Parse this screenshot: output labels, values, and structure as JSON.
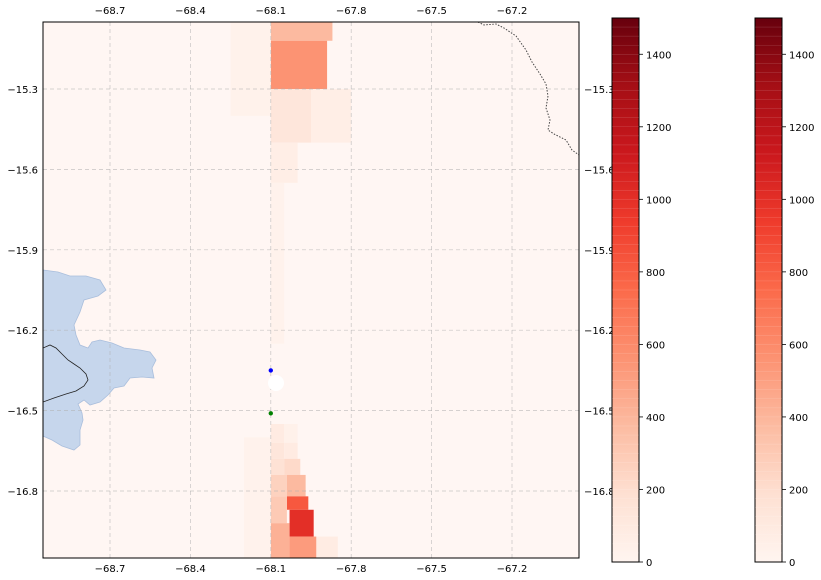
{
  "map": {
    "lon_range": [
      -68.95,
      -66.95
    ],
    "lat_range": [
      -17.05,
      -15.05
    ],
    "x_ticks": [
      -68.7,
      -68.4,
      -68.1,
      -67.8,
      -67.5,
      -67.2
    ],
    "x_tick_labels": [
      "−68.7",
      "−68.4",
      "−68.1",
      "−67.8",
      "−67.5",
      "−67.2"
    ],
    "y_ticks": [
      -15.3,
      -15.6,
      -15.9,
      -16.2,
      -16.5,
      -16.8
    ],
    "y_tick_labels": [
      "−15.3",
      "−15.6",
      "−15.9",
      "−16.2",
      "−16.5",
      "−16.8"
    ],
    "gridlines": true,
    "points": [
      {
        "name": "blue-station",
        "lon": -68.1,
        "lat": -16.35,
        "color": "#0000ff"
      },
      {
        "name": "green-station",
        "lon": -68.1,
        "lat": -16.51,
        "color": "#008000"
      }
    ],
    "lake_color": "#c6d6ec",
    "background_color": "#fff6f3",
    "colormap": "Reds"
  },
  "colorbars": [
    {
      "name": "colorbar-left",
      "range": [
        0,
        1500
      ],
      "tick_labels": [
        "0",
        "200",
        "400",
        "600",
        "800",
        "1000",
        "1200",
        "1400"
      ]
    },
    {
      "name": "colorbar-right",
      "range": [
        0,
        1500
      ],
      "tick_labels": [
        "0",
        "200",
        "400",
        "600",
        "800",
        "1000",
        "1200",
        "1400"
      ]
    }
  ],
  "cells": [
    {
      "lon0": -68.1,
      "lon1": -67.87,
      "lat0": -15.05,
      "lat1": -15.12,
      "value": 380
    },
    {
      "lon0": -68.1,
      "lon1": -67.89,
      "lat0": -15.12,
      "lat1": -15.3,
      "value": 560
    },
    {
      "lon0": -68.1,
      "lon1": -67.95,
      "lat0": -15.3,
      "lat1": -15.5,
      "value": 130
    },
    {
      "lon0": -67.95,
      "lon1": -67.8,
      "lat0": -15.3,
      "lat1": -15.5,
      "value": 60
    },
    {
      "lon0": -68.1,
      "lon1": -68.0,
      "lat0": -15.5,
      "lat1": -15.65,
      "value": 60
    },
    {
      "lon0": -68.1,
      "lon1": -68.05,
      "lat0": -15.65,
      "lat1": -16.25,
      "value": 25
    },
    {
      "lon0": -68.1,
      "lon1": -68.05,
      "lat0": -16.55,
      "lat1": -16.62,
      "value": 90
    },
    {
      "lon0": -68.05,
      "lon1": -68.0,
      "lat0": -16.55,
      "lat1": -16.62,
      "value": 40
    },
    {
      "lon0": -68.1,
      "lon1": -68.05,
      "lat0": -16.62,
      "lat1": -16.68,
      "value": 130
    },
    {
      "lon0": -68.05,
      "lon1": -68.0,
      "lat0": -16.62,
      "lat1": -16.68,
      "value": 90
    },
    {
      "lon0": -68.1,
      "lon1": -68.05,
      "lat0": -16.68,
      "lat1": -16.74,
      "value": 170
    },
    {
      "lon0": -68.05,
      "lon1": -67.99,
      "lat0": -16.68,
      "lat1": -16.74,
      "value": 220
    },
    {
      "lon0": -68.1,
      "lon1": -68.04,
      "lat0": -16.74,
      "lat1": -16.82,
      "value": 260
    },
    {
      "lon0": -68.04,
      "lon1": -67.97,
      "lat0": -16.74,
      "lat1": -16.82,
      "value": 380
    },
    {
      "lon0": -68.04,
      "lon1": -67.96,
      "lat0": -16.82,
      "lat1": -16.87,
      "value": 820
    },
    {
      "lon0": -68.1,
      "lon1": -68.04,
      "lat0": -16.82,
      "lat1": -16.92,
      "value": 300
    },
    {
      "lon0": -68.03,
      "lon1": -67.94,
      "lat0": -16.87,
      "lat1": -16.97,
      "value": 1000
    },
    {
      "lon0": -68.1,
      "lon1": -68.03,
      "lat0": -16.92,
      "lat1": -17.05,
      "value": 420
    },
    {
      "lon0": -68.03,
      "lon1": -67.93,
      "lat0": -16.97,
      "lat1": -17.05,
      "value": 520
    },
    {
      "lon0": -67.93,
      "lon1": -67.85,
      "lat0": -16.97,
      "lat1": -17.05,
      "value": 80
    },
    {
      "lon0": -68.25,
      "lon1": -68.1,
      "lat0": -15.05,
      "lat1": -15.4,
      "value": 30
    },
    {
      "lon0": -68.2,
      "lon1": -68.1,
      "lat0": -16.6,
      "lat1": -17.05,
      "value": 25
    }
  ]
}
